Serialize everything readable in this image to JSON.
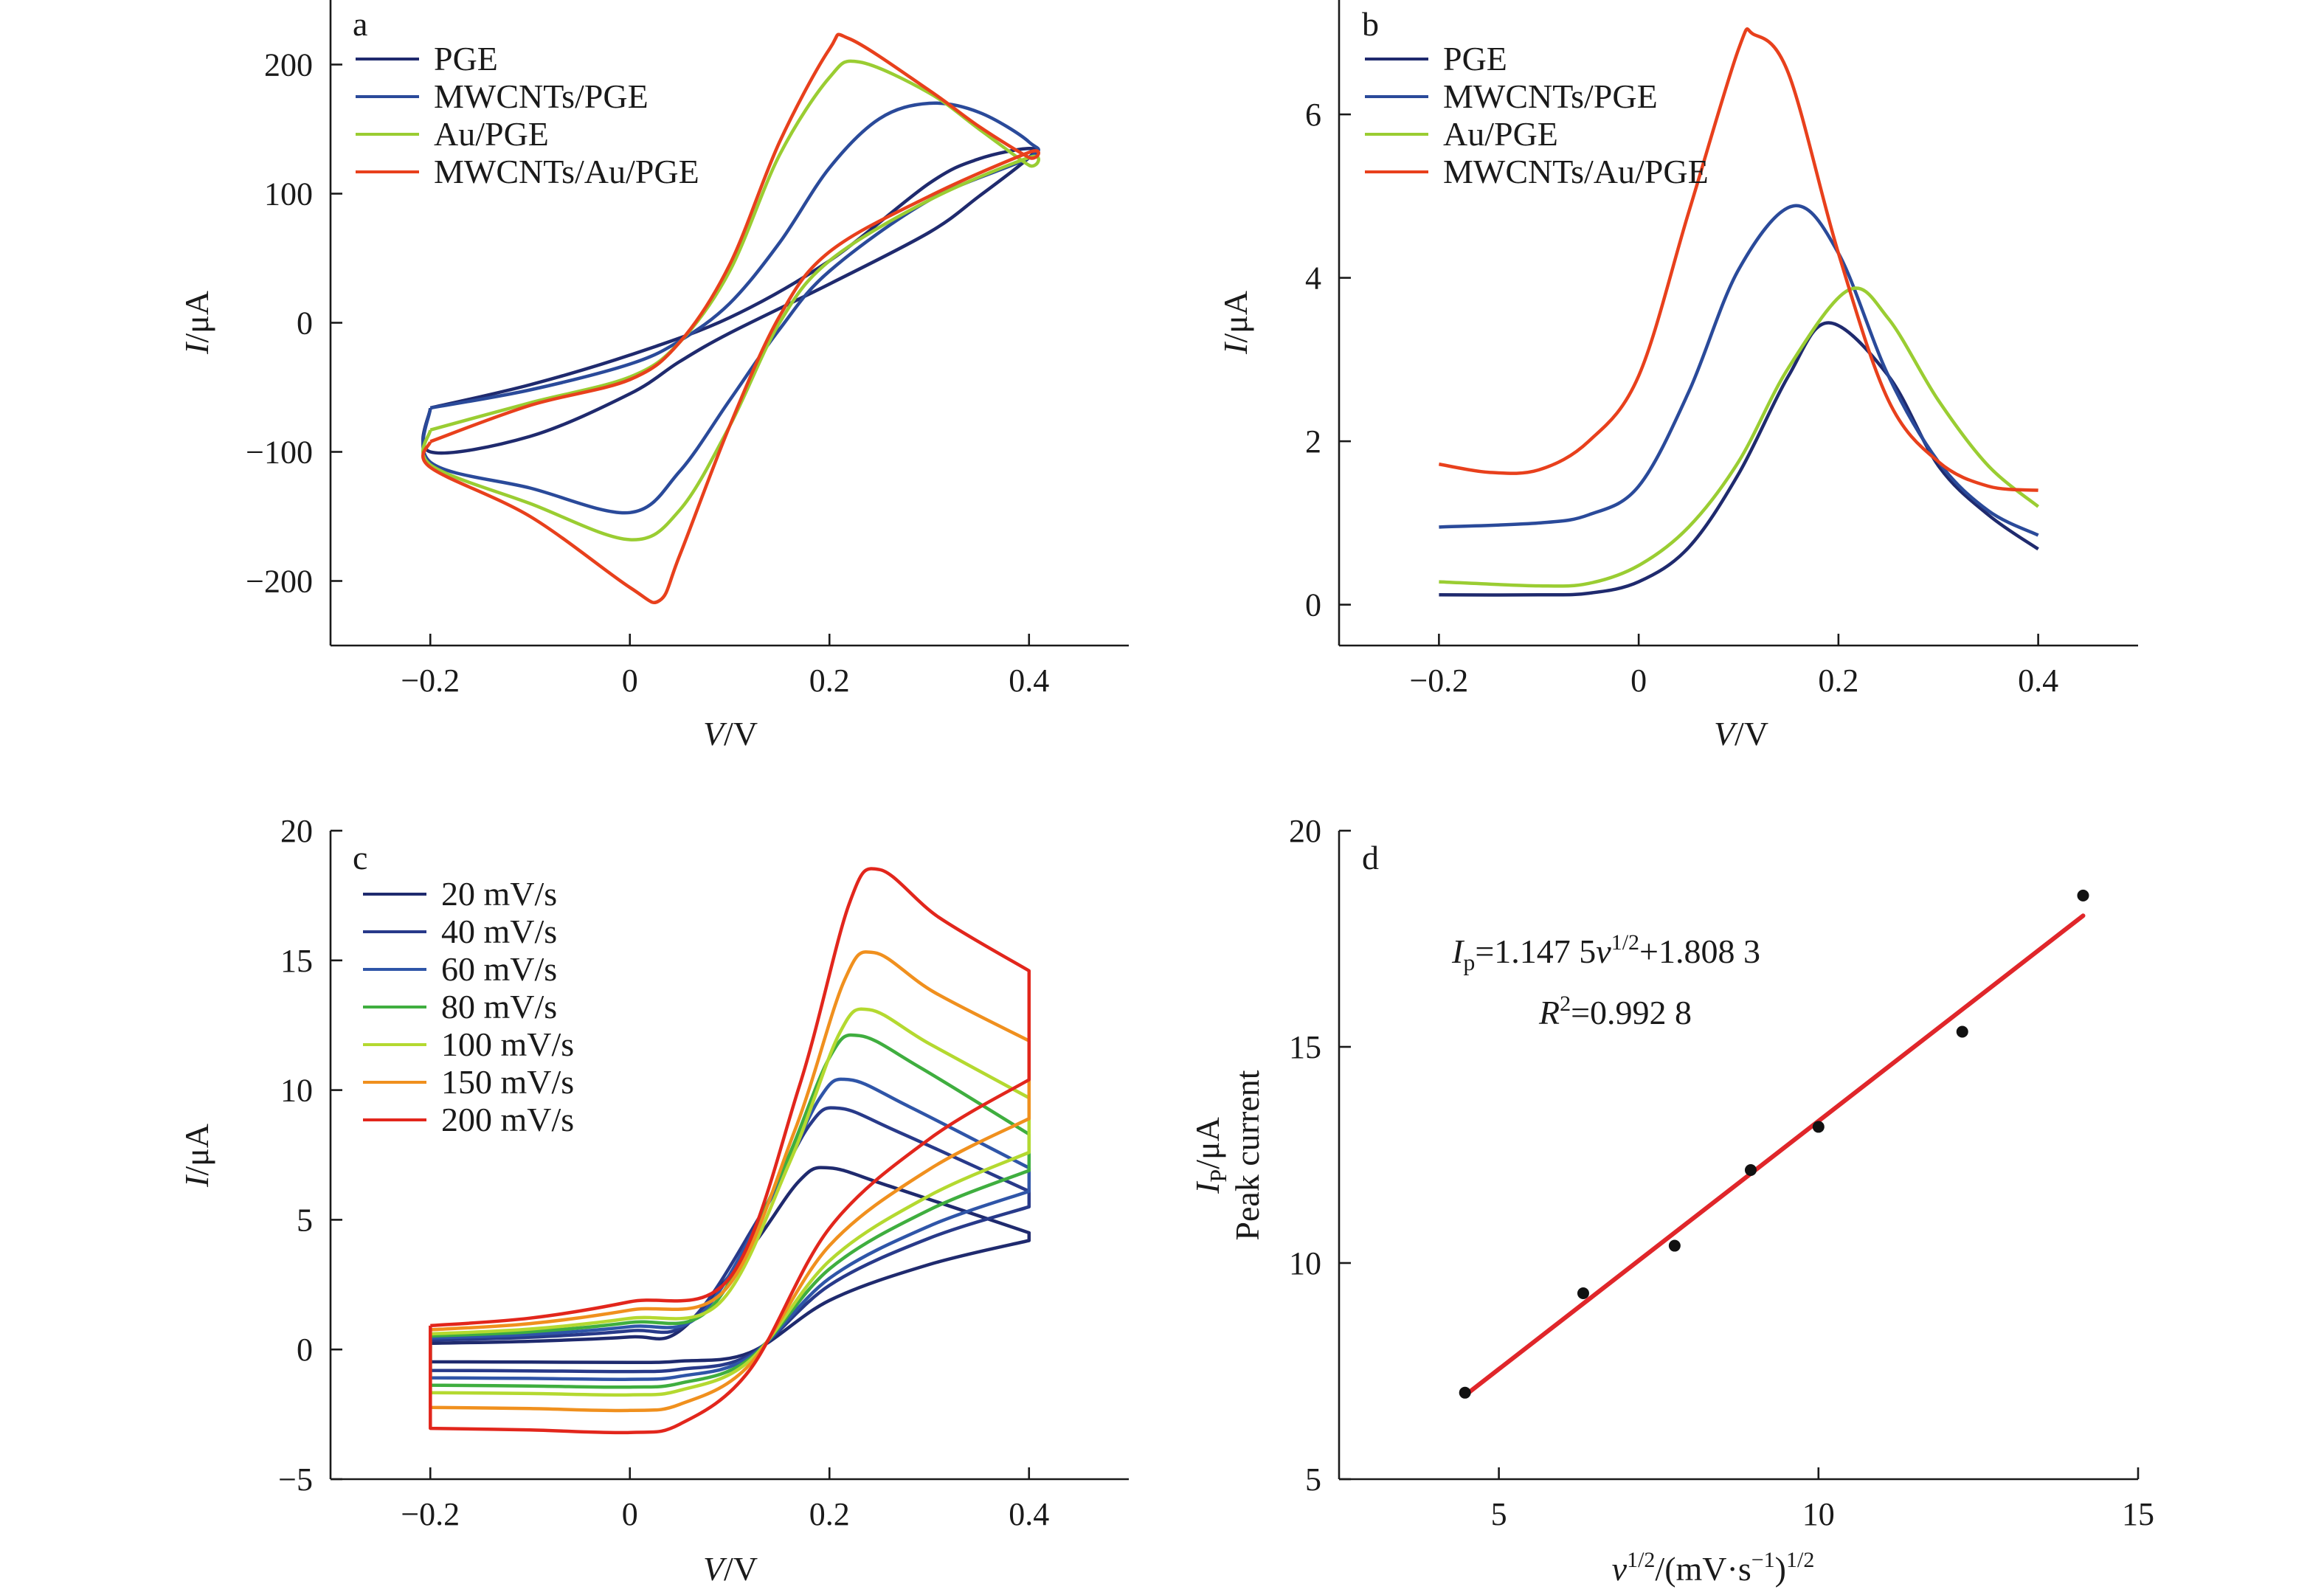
{
  "chart_data": [
    {
      "panel": "a",
      "type": "line",
      "xlabel_var": "V",
      "xlabel_unit": "/V",
      "ylabel_var": "I",
      "ylabel_unit": "/μA",
      "xlim": [
        -0.3,
        0.5
      ],
      "ylim": [
        -250,
        250
      ],
      "xticks": [
        -0.2,
        0,
        0.2,
        0.4
      ],
      "xticklabels": [
        "−0.2",
        "0",
        "0.2",
        "0.4"
      ],
      "yticks": [
        -200,
        -100,
        0,
        100,
        200
      ],
      "yticklabels": [
        "−200",
        "−100",
        "0",
        "100",
        "200"
      ],
      "legend_position": "top-left",
      "series": [
        {
          "name": "PGE",
          "color": "#1f2a6e",
          "x": [
            -0.2,
            -0.1,
            0,
            0.1,
            0.2,
            0.3,
            0.35,
            0.4,
            0.4,
            0.35,
            0.3,
            0.2,
            0.1,
            0.05,
            0,
            -0.1,
            -0.2,
            -0.2
          ],
          "y": [
            -66,
            -48,
            -25,
            4,
            48,
            108,
            127,
            135,
            128,
            98,
            70,
            30,
            -8,
            -30,
            -55,
            -88,
            -100,
            -66
          ]
        },
        {
          "name": "MWCNTs/PGE",
          "color": "#2a4a9a",
          "x": [
            -0.2,
            -0.1,
            0,
            0.05,
            0.1,
            0.15,
            0.2,
            0.25,
            0.3,
            0.35,
            0.4,
            0.4,
            0.3,
            0.2,
            0.15,
            0.1,
            0.05,
            0,
            -0.1,
            -0.2,
            -0.2
          ],
          "y": [
            -66,
            -52,
            -32,
            -14,
            15,
            62,
            120,
            158,
            170,
            163,
            140,
            128,
            95,
            40,
            -5,
            -60,
            -115,
            -147,
            -128,
            -108,
            -66
          ]
        },
        {
          "name": "Au/PGE",
          "color": "#9acd32",
          "x": [
            -0.2,
            -0.1,
            0,
            0.05,
            0.1,
            0.15,
            0.2,
            0.23,
            0.3,
            0.35,
            0.4,
            0.4,
            0.3,
            0.2,
            0.15,
            0.1,
            0.05,
            0,
            -0.1,
            -0.2,
            -0.2
          ],
          "y": [
            -83,
            -62,
            -42,
            -15,
            40,
            130,
            190,
            202,
            178,
            150,
            122,
            128,
            95,
            48,
            0,
            -80,
            -145,
            -168,
            -140,
            -110,
            -83
          ]
        },
        {
          "name": "MWCNTs/Au/PGE",
          "color": "#e8401c",
          "x": [
            -0.2,
            -0.1,
            0,
            0.05,
            0.1,
            0.15,
            0.2,
            0.22,
            0.3,
            0.35,
            0.4,
            0.4,
            0.3,
            0.2,
            0.15,
            0.1,
            0.05,
            0.03,
            0,
            -0.1,
            -0.2,
            -0.2
          ],
          "y": [
            -92,
            -64,
            -44,
            -15,
            45,
            140,
            212,
            220,
            180,
            152,
            128,
            132,
            98,
            55,
            5,
            -80,
            -180,
            -215,
            -205,
            -150,
            -112,
            -92
          ]
        }
      ]
    },
    {
      "panel": "b",
      "type": "line",
      "xlabel_var": "V",
      "xlabel_unit": "/V",
      "ylabel_var": "I",
      "ylabel_unit": "/μA",
      "xlim": [
        -0.3,
        0.5
      ],
      "ylim": [
        -0.5,
        7.4
      ],
      "xticks": [
        -0.2,
        0,
        0.2,
        0.4
      ],
      "xticklabels": [
        "−0.2",
        "0",
        "0.2",
        "0.4"
      ],
      "yticks": [
        0,
        2,
        4,
        6
      ],
      "yticklabels": [
        "0",
        "2",
        "4",
        "6"
      ],
      "legend_position": "top-left",
      "series": [
        {
          "name": "PGE",
          "color": "#1f2a6e",
          "x": [
            -0.2,
            -0.1,
            -0.05,
            0,
            0.05,
            0.1,
            0.15,
            0.19,
            0.25,
            0.3,
            0.35,
            0.4
          ],
          "y": [
            0.12,
            0.12,
            0.14,
            0.28,
            0.7,
            1.6,
            2.8,
            3.45,
            2.8,
            1.7,
            1.1,
            0.68
          ]
        },
        {
          "name": "MWCNTs/PGE",
          "color": "#2a4a9a",
          "x": [
            -0.2,
            -0.1,
            -0.05,
            0,
            0.05,
            0.1,
            0.155,
            0.2,
            0.25,
            0.3,
            0.35,
            0.4
          ],
          "y": [
            0.95,
            1.0,
            1.1,
            1.45,
            2.6,
            4.1,
            4.88,
            4.3,
            2.8,
            1.75,
            1.15,
            0.85
          ]
        },
        {
          "name": "Au/PGE",
          "color": "#9acd32",
          "x": [
            -0.2,
            -0.1,
            -0.05,
            0,
            0.05,
            0.1,
            0.15,
            0.21,
            0.25,
            0.3,
            0.35,
            0.4
          ],
          "y": [
            0.28,
            0.23,
            0.26,
            0.48,
            0.95,
            1.75,
            2.9,
            3.85,
            3.5,
            2.5,
            1.7,
            1.2
          ]
        },
        {
          "name": "MWCNTs/Au/PGE",
          "color": "#e8401c",
          "x": [
            -0.2,
            -0.15,
            -0.1,
            -0.05,
            0,
            0.05,
            0.1,
            0.115,
            0.15,
            0.2,
            0.25,
            0.3,
            0.35,
            0.4
          ],
          "y": [
            1.72,
            1.62,
            1.65,
            2.0,
            2.8,
            4.8,
            6.8,
            6.98,
            6.5,
            4.3,
            2.5,
            1.75,
            1.45,
            1.4
          ]
        }
      ]
    },
    {
      "panel": "c",
      "type": "line",
      "xlabel_var": "V",
      "xlabel_unit": "/V",
      "ylabel_var": "I",
      "ylabel_unit": "/μA",
      "xlim": [
        -0.3,
        0.5
      ],
      "ylim": [
        -5,
        20
      ],
      "xticks": [
        -0.2,
        0,
        0.2,
        0.4
      ],
      "xticklabels": [
        "−0.2",
        "0",
        "0.2",
        "0.4"
      ],
      "yticks": [
        -5,
        0,
        5,
        10,
        15,
        20
      ],
      "yticklabels": [
        "−5",
        "0",
        "5",
        "10",
        "15",
        "20"
      ],
      "legend_position": "top-left",
      "series": [
        {
          "name": "20 mV/s",
          "color": "#1f2a6e",
          "scan_rate_mV_s": 20,
          "peak_uA": 7.0,
          "peak_V": 0.2,
          "low_uA": 0.3,
          "cath_uA": -0.5,
          "end_high_uA": 4.5,
          "end_low_uA": 4.2
        },
        {
          "name": "40 mV/s",
          "color": "#283a8a",
          "scan_rate_mV_s": 40,
          "peak_uA": 9.3,
          "peak_V": 0.21,
          "low_uA": 0.45,
          "cath_uA": -0.85,
          "end_high_uA": 6.1,
          "end_low_uA": 5.5
        },
        {
          "name": "60 mV/s",
          "color": "#2f55a8",
          "scan_rate_mV_s": 60,
          "peak_uA": 10.4,
          "peak_V": 0.22,
          "low_uA": 0.55,
          "cath_uA": -1.15,
          "end_high_uA": 7.0,
          "end_low_uA": 6.1
        },
        {
          "name": "80 mV/s",
          "color": "#3fae3f",
          "scan_rate_mV_s": 80,
          "peak_uA": 12.1,
          "peak_V": 0.23,
          "low_uA": 0.65,
          "cath_uA": -1.45,
          "end_high_uA": 8.3,
          "end_low_uA": 6.9
        },
        {
          "name": "100 mV/s",
          "color": "#b4d930",
          "scan_rate_mV_s": 100,
          "peak_uA": 13.1,
          "peak_V": 0.24,
          "low_uA": 0.75,
          "cath_uA": -1.75,
          "end_high_uA": 9.7,
          "end_low_uA": 7.6
        },
        {
          "name": "150 mV/s",
          "color": "#f0901e",
          "scan_rate_mV_s": 150,
          "peak_uA": 15.3,
          "peak_V": 0.245,
          "low_uA": 0.95,
          "cath_uA": -2.35,
          "end_high_uA": 11.9,
          "end_low_uA": 8.9
        },
        {
          "name": "200 mV/s",
          "color": "#e2261c",
          "scan_rate_mV_s": 200,
          "peak_uA": 18.5,
          "peak_V": 0.25,
          "low_uA": 1.15,
          "cath_uA": -3.2,
          "end_high_uA": 14.6,
          "end_low_uA": 10.4
        }
      ]
    },
    {
      "panel": "d",
      "type": "scatter",
      "xlabel": "v^{1/2}/(mV·s^{−1})^{1/2}",
      "ylabel": "I_p/μA Peak current",
      "xlim": [
        2.5,
        15
      ],
      "ylim": [
        5,
        20
      ],
      "xticks": [
        5,
        10,
        15
      ],
      "xticklabels": [
        "5",
        "10",
        "15"
      ],
      "yticks": [
        5,
        10,
        15,
        20
      ],
      "yticklabels": [
        "5",
        "10",
        "15",
        "20"
      ],
      "points": {
        "x": [
          4.47,
          6.32,
          7.75,
          8.94,
          10.0,
          12.25,
          14.14
        ],
        "y": [
          7.0,
          9.3,
          10.4,
          12.15,
          13.15,
          15.35,
          18.5
        ]
      },
      "fit": {
        "slope": 1.1475,
        "intercept": 1.8083,
        "r2": 0.9928,
        "x_range": [
          4.47,
          14.14
        ],
        "color": "#e0262a"
      },
      "point_color": "#111111"
    }
  ],
  "labels": {
    "panel_a": "a",
    "panel_b": "b",
    "panel_c": "c",
    "panel_d": "d",
    "x_var": "V",
    "x_unit": "/V",
    "y_var": "I",
    "y_unit": "/μA",
    "d_xvar": "v",
    "d_x_sup1": "1/2",
    "d_x_mid": "/(mV·s",
    "d_x_sup2": "−1",
    "d_x_end": ")",
    "d_x_sup3": "1/2",
    "d_y_var": "I",
    "d_y_sub": "P",
    "d_y_unit": "/μA",
    "d_y_line2": "Peak current",
    "eq_var": "I",
    "eq_sub": "p",
    "eq_mid": "=1.147 5",
    "eq_v": "v",
    "eq_sup": "1/2",
    "eq_end": "+1.808 3",
    "r2_var": "R",
    "r2_sup": "2",
    "r2_val": "=0.992 8"
  }
}
